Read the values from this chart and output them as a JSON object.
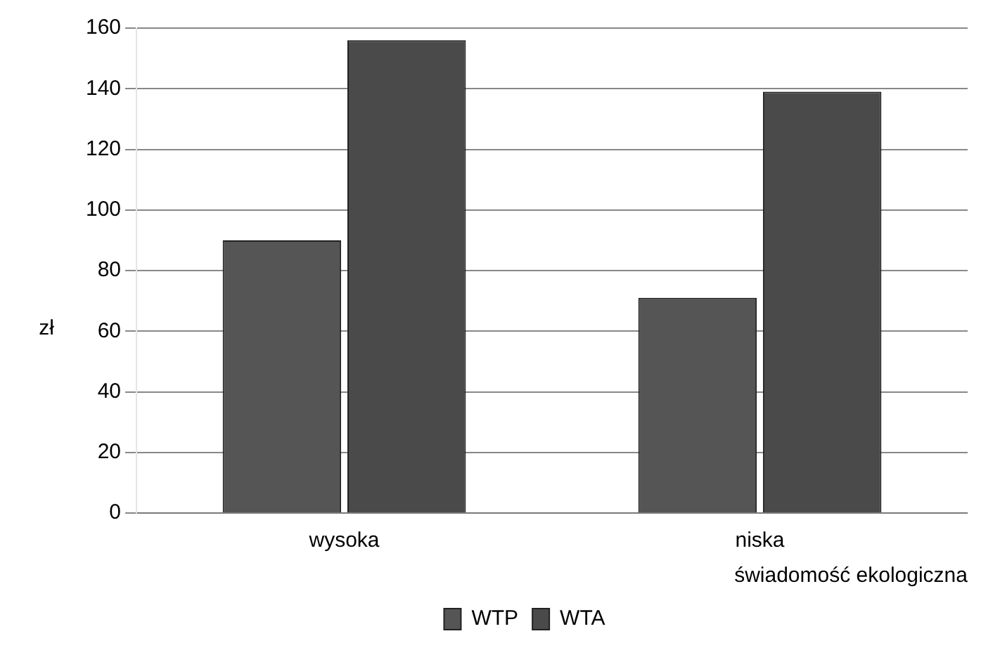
{
  "chart_data": {
    "type": "bar",
    "xlabel": "świadomość ekologiczna",
    "ylabel": "zł",
    "categories": [
      "wysoka",
      "niska"
    ],
    "series": [
      {
        "name": "WTP",
        "color": "#555555",
        "values": [
          90,
          71
        ]
      },
      {
        "name": "WTA",
        "color": "#4a4a4a",
        "values": [
          156,
          139
        ]
      }
    ],
    "ylim": [
      0,
      160
    ],
    "yticks": [
      0,
      20,
      40,
      60,
      80,
      100,
      120,
      140,
      160
    ],
    "grid": "y",
    "legend": "bottom"
  }
}
